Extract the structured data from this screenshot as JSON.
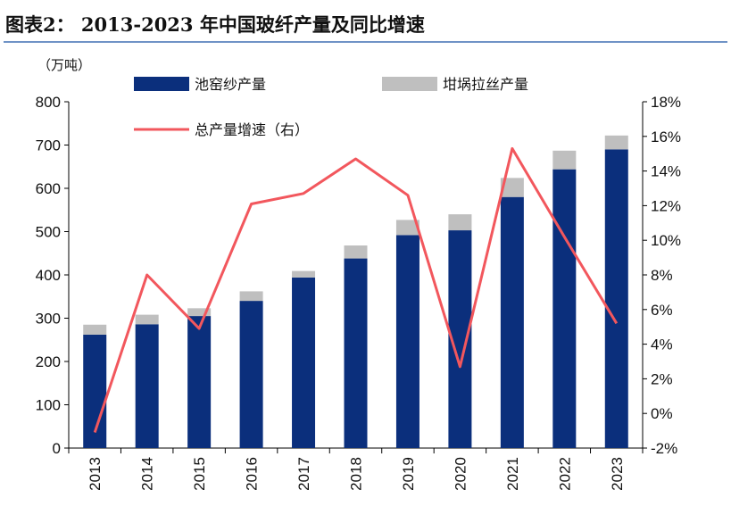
{
  "title": "图表2：  2013-2023 年中国玻纤产量及同比增速",
  "colors": {
    "bar_primary": "#0b2f7c",
    "bar_secondary": "#bfbfbf",
    "line": "#f2575d",
    "rule": "#6f93c6",
    "axis": "#000000"
  },
  "chart_data": {
    "type": "bar",
    "categories": [
      "2013",
      "2014",
      "2015",
      "2016",
      "2017",
      "2018",
      "2019",
      "2020",
      "2021",
      "2022",
      "2023"
    ],
    "series": [
      {
        "name": "池窑纱产量",
        "type": "bar",
        "values": [
          262,
          286,
          305,
          340,
          394,
          438,
          492,
          503,
          580,
          644,
          690
        ]
      },
      {
        "name": "坩埚拉丝产量",
        "type": "bar",
        "values": [
          23,
          22,
          18,
          22,
          15,
          30,
          35,
          37,
          44,
          43,
          32
        ]
      },
      {
        "name": "总产量增速（右）",
        "type": "line",
        "axis": "right",
        "values": [
          -1.1,
          8.0,
          4.9,
          12.1,
          12.7,
          14.7,
          12.6,
          2.7,
          15.3,
          10.2,
          5.2
        ]
      }
    ],
    "left_axis": {
      "unit_label": "（万吨）",
      "ylim": [
        0,
        800
      ],
      "ticks": [
        "0",
        "100",
        "200",
        "300",
        "400",
        "500",
        "600",
        "700",
        "800"
      ]
    },
    "right_axis": {
      "ylim": [
        -2,
        18
      ],
      "ticks": [
        "-2%",
        "0%",
        "2%",
        "4%",
        "6%",
        "8%",
        "10%",
        "12%",
        "14%",
        "16%",
        "18%"
      ]
    },
    "grid": false
  }
}
